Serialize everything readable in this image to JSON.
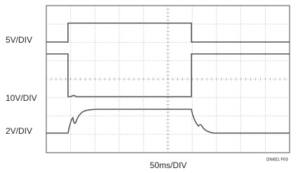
{
  "labels": {
    "trace1_scale": "5V/DIV",
    "trace2_scale": "10V/DIV",
    "trace3_scale": "2V/DIV",
    "time_scale": "50ms/DIV",
    "figure_id": "DN451 F03"
  }
}
